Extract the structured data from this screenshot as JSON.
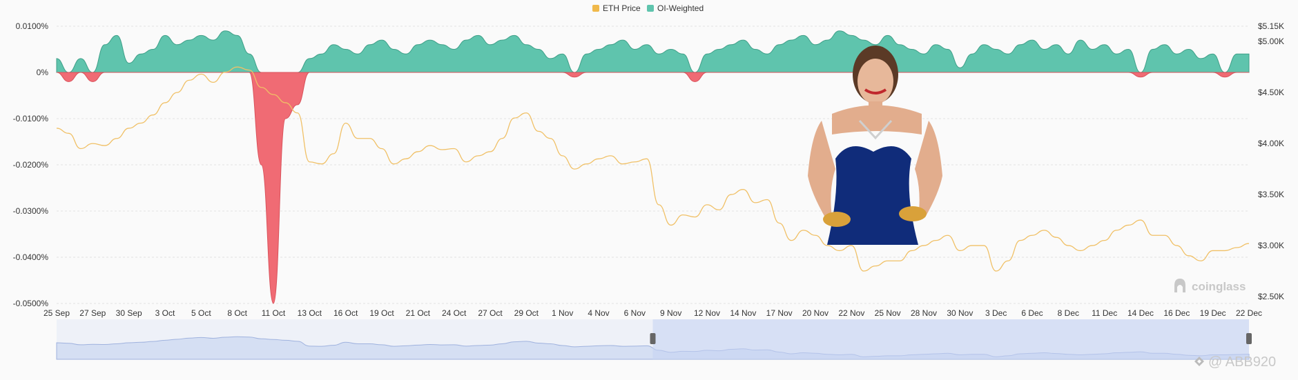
{
  "chart_data": {
    "type": "area",
    "title": "",
    "legend": {
      "placement": "top-center",
      "items": [
        {
          "label": "ETH Price",
          "color": "#f0b94b"
        },
        {
          "label": "OI-Weighted",
          "color": "#5fc4ad"
        }
      ]
    },
    "negative_color": "#f06b74",
    "x_ticks": [
      "25 Sep",
      "27 Sep",
      "30 Sep",
      "3 Oct",
      "5 Oct",
      "8 Oct",
      "11 Oct",
      "13 Oct",
      "16 Oct",
      "19 Oct",
      "21 Oct",
      "24 Oct",
      "27 Oct",
      "29 Oct",
      "1 Nov",
      "4 Nov",
      "6 Nov",
      "9 Nov",
      "12 Nov",
      "14 Nov",
      "17 Nov",
      "20 Nov",
      "22 Nov",
      "25 Nov",
      "28 Nov",
      "30 Nov",
      "3 Dec",
      "6 Dec",
      "8 Dec",
      "11 Dec",
      "14 Dec",
      "16 Dec",
      "19 Dec",
      "22 Dec"
    ],
    "y_left": {
      "ticks": [
        "0.0100%",
        "0%",
        "-0.0100%",
        "-0.0200%",
        "-0.0300%",
        "-0.0400%",
        "-0.0500%"
      ],
      "min": -0.05,
      "max": 0.01
    },
    "y_right": {
      "ticks": [
        "$5.15K",
        "$5.00K",
        "$4.50K",
        "$4.00K",
        "$3.50K",
        "$3.00K",
        "$2.50K"
      ],
      "min": 2.5,
      "max": 5.15
    },
    "series": [
      {
        "name": "ETH Price",
        "unit": "K USD",
        "values": [
          4.15,
          4.1,
          3.95,
          4.0,
          3.98,
          4.05,
          4.15,
          4.2,
          4.28,
          4.4,
          4.5,
          4.62,
          4.68,
          4.6,
          4.7,
          4.75,
          4.72,
          4.55,
          4.48,
          4.4,
          4.3,
          3.82,
          3.8,
          3.9,
          4.2,
          4.05,
          4.05,
          3.95,
          3.8,
          3.85,
          3.92,
          3.98,
          3.94,
          3.95,
          3.82,
          3.88,
          3.92,
          4.05,
          4.25,
          4.3,
          4.12,
          4.05,
          3.88,
          3.75,
          3.8,
          3.85,
          3.88,
          3.8,
          3.82,
          3.85,
          3.4,
          3.2,
          3.3,
          3.28,
          3.4,
          3.35,
          3.5,
          3.55,
          3.42,
          3.45,
          3.22,
          3.05,
          3.15,
          3.1,
          3.0,
          2.95,
          3.0,
          2.75,
          2.8,
          2.85,
          2.85,
          2.95,
          3.0,
          3.05,
          3.1,
          2.95,
          3.0,
          3.0,
          2.75,
          2.85,
          3.05,
          3.1,
          3.15,
          3.08,
          3.0,
          2.95,
          3.0,
          3.05,
          3.15,
          3.2,
          3.25,
          3.1,
          3.1,
          3.0,
          2.9,
          2.85,
          2.95,
          2.95,
          2.98,
          3.02
        ]
      },
      {
        "name": "OI-Weighted",
        "unit": "%",
        "values": [
          0.003,
          -0.002,
          0.003,
          -0.002,
          0.006,
          0.008,
          0.002,
          0.004,
          0.005,
          0.008,
          0.006,
          0.007,
          0.008,
          0.007,
          0.009,
          0.008,
          0.004,
          -0.02,
          -0.05,
          -0.01,
          -0.007,
          0.003,
          0.004,
          0.006,
          0.005,
          0.004,
          0.006,
          0.007,
          0.005,
          0.004,
          0.006,
          0.007,
          0.006,
          0.005,
          0.007,
          0.008,
          0.006,
          0.007,
          0.008,
          0.006,
          0.005,
          0.003,
          0.004,
          -0.001,
          0.004,
          0.005,
          0.006,
          0.007,
          0.005,
          0.006,
          0.004,
          0.005,
          0.004,
          -0.002,
          0.004,
          0.005,
          0.006,
          0.007,
          0.005,
          0.004,
          0.006,
          0.007,
          0.008,
          0.006,
          0.007,
          0.009,
          0.008,
          0.007,
          0.006,
          0.008,
          0.006,
          0.005,
          0.004,
          0.006,
          0.005,
          0.001,
          0.004,
          0.006,
          0.005,
          0.004,
          0.006,
          0.007,
          0.005,
          0.006,
          0.004,
          0.007,
          0.005,
          0.006,
          0.004,
          0.005,
          -0.001,
          0.005,
          0.006,
          0.004,
          0.005,
          0.003,
          0.004,
          -0.001,
          0.004,
          0.004
        ]
      }
    ],
    "navigator": {
      "window_start_fraction": 0.5,
      "window_end_fraction": 1.0
    },
    "watermarks": [
      "coinglass",
      "@ ABB920"
    ]
  }
}
